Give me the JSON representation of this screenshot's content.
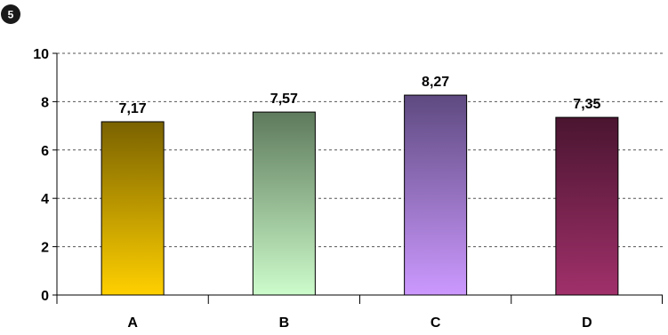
{
  "badge": {
    "label": "5"
  },
  "chart_data": {
    "type": "bar",
    "title": "",
    "xlabel": "",
    "ylabel": "",
    "categories": [
      "A",
      "B",
      "C",
      "D"
    ],
    "values": [
      7.17,
      7.57,
      8.27,
      7.35
    ],
    "value_labels": [
      "7,17",
      "7,57",
      "8,27",
      "7,35"
    ],
    "ylim": [
      0,
      10
    ],
    "yticks": [
      0,
      2,
      4,
      6,
      8,
      10
    ],
    "ytick_labels": [
      "0",
      "2",
      "4",
      "6",
      "8",
      "10"
    ],
    "grid": "horizontal-dashed",
    "legend": "none",
    "colors": [
      {
        "top": "#7a6200",
        "bottom": "#ffd000"
      },
      {
        "top": "#5e7a5c",
        "bottom": "#cdfccb"
      },
      {
        "top": "#5e4a80",
        "bottom": "#cc99ff"
      },
      {
        "top": "#4a1530",
        "bottom": "#a0306a"
      }
    ]
  }
}
